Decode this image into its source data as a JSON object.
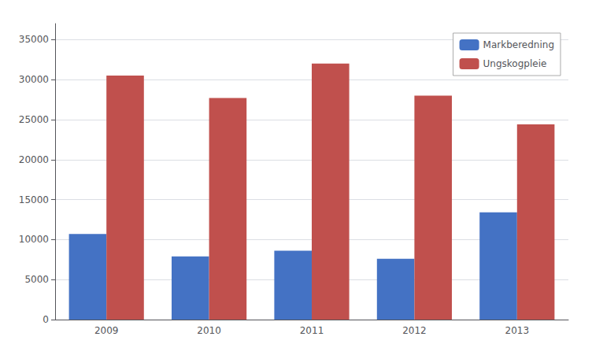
{
  "chart_data": {
    "type": "bar",
    "categories": [
      "2009",
      "2010",
      "2011",
      "2012",
      "2013"
    ],
    "series": [
      {
        "name": "Markberedning",
        "color": "#4472C4",
        "values": [
          10700,
          7900,
          8600,
          7600,
          13400
        ]
      },
      {
        "name": "Ungskogpleie",
        "color": "#C0504D",
        "values": [
          30500,
          27700,
          32000,
          28000,
          24400
        ]
      }
    ],
    "ylim": [
      0,
      37000
    ],
    "yticks": [
      0,
      5000,
      10000,
      15000,
      20000,
      25000,
      30000,
      35000
    ],
    "grid": true,
    "legend": "upper right"
  }
}
